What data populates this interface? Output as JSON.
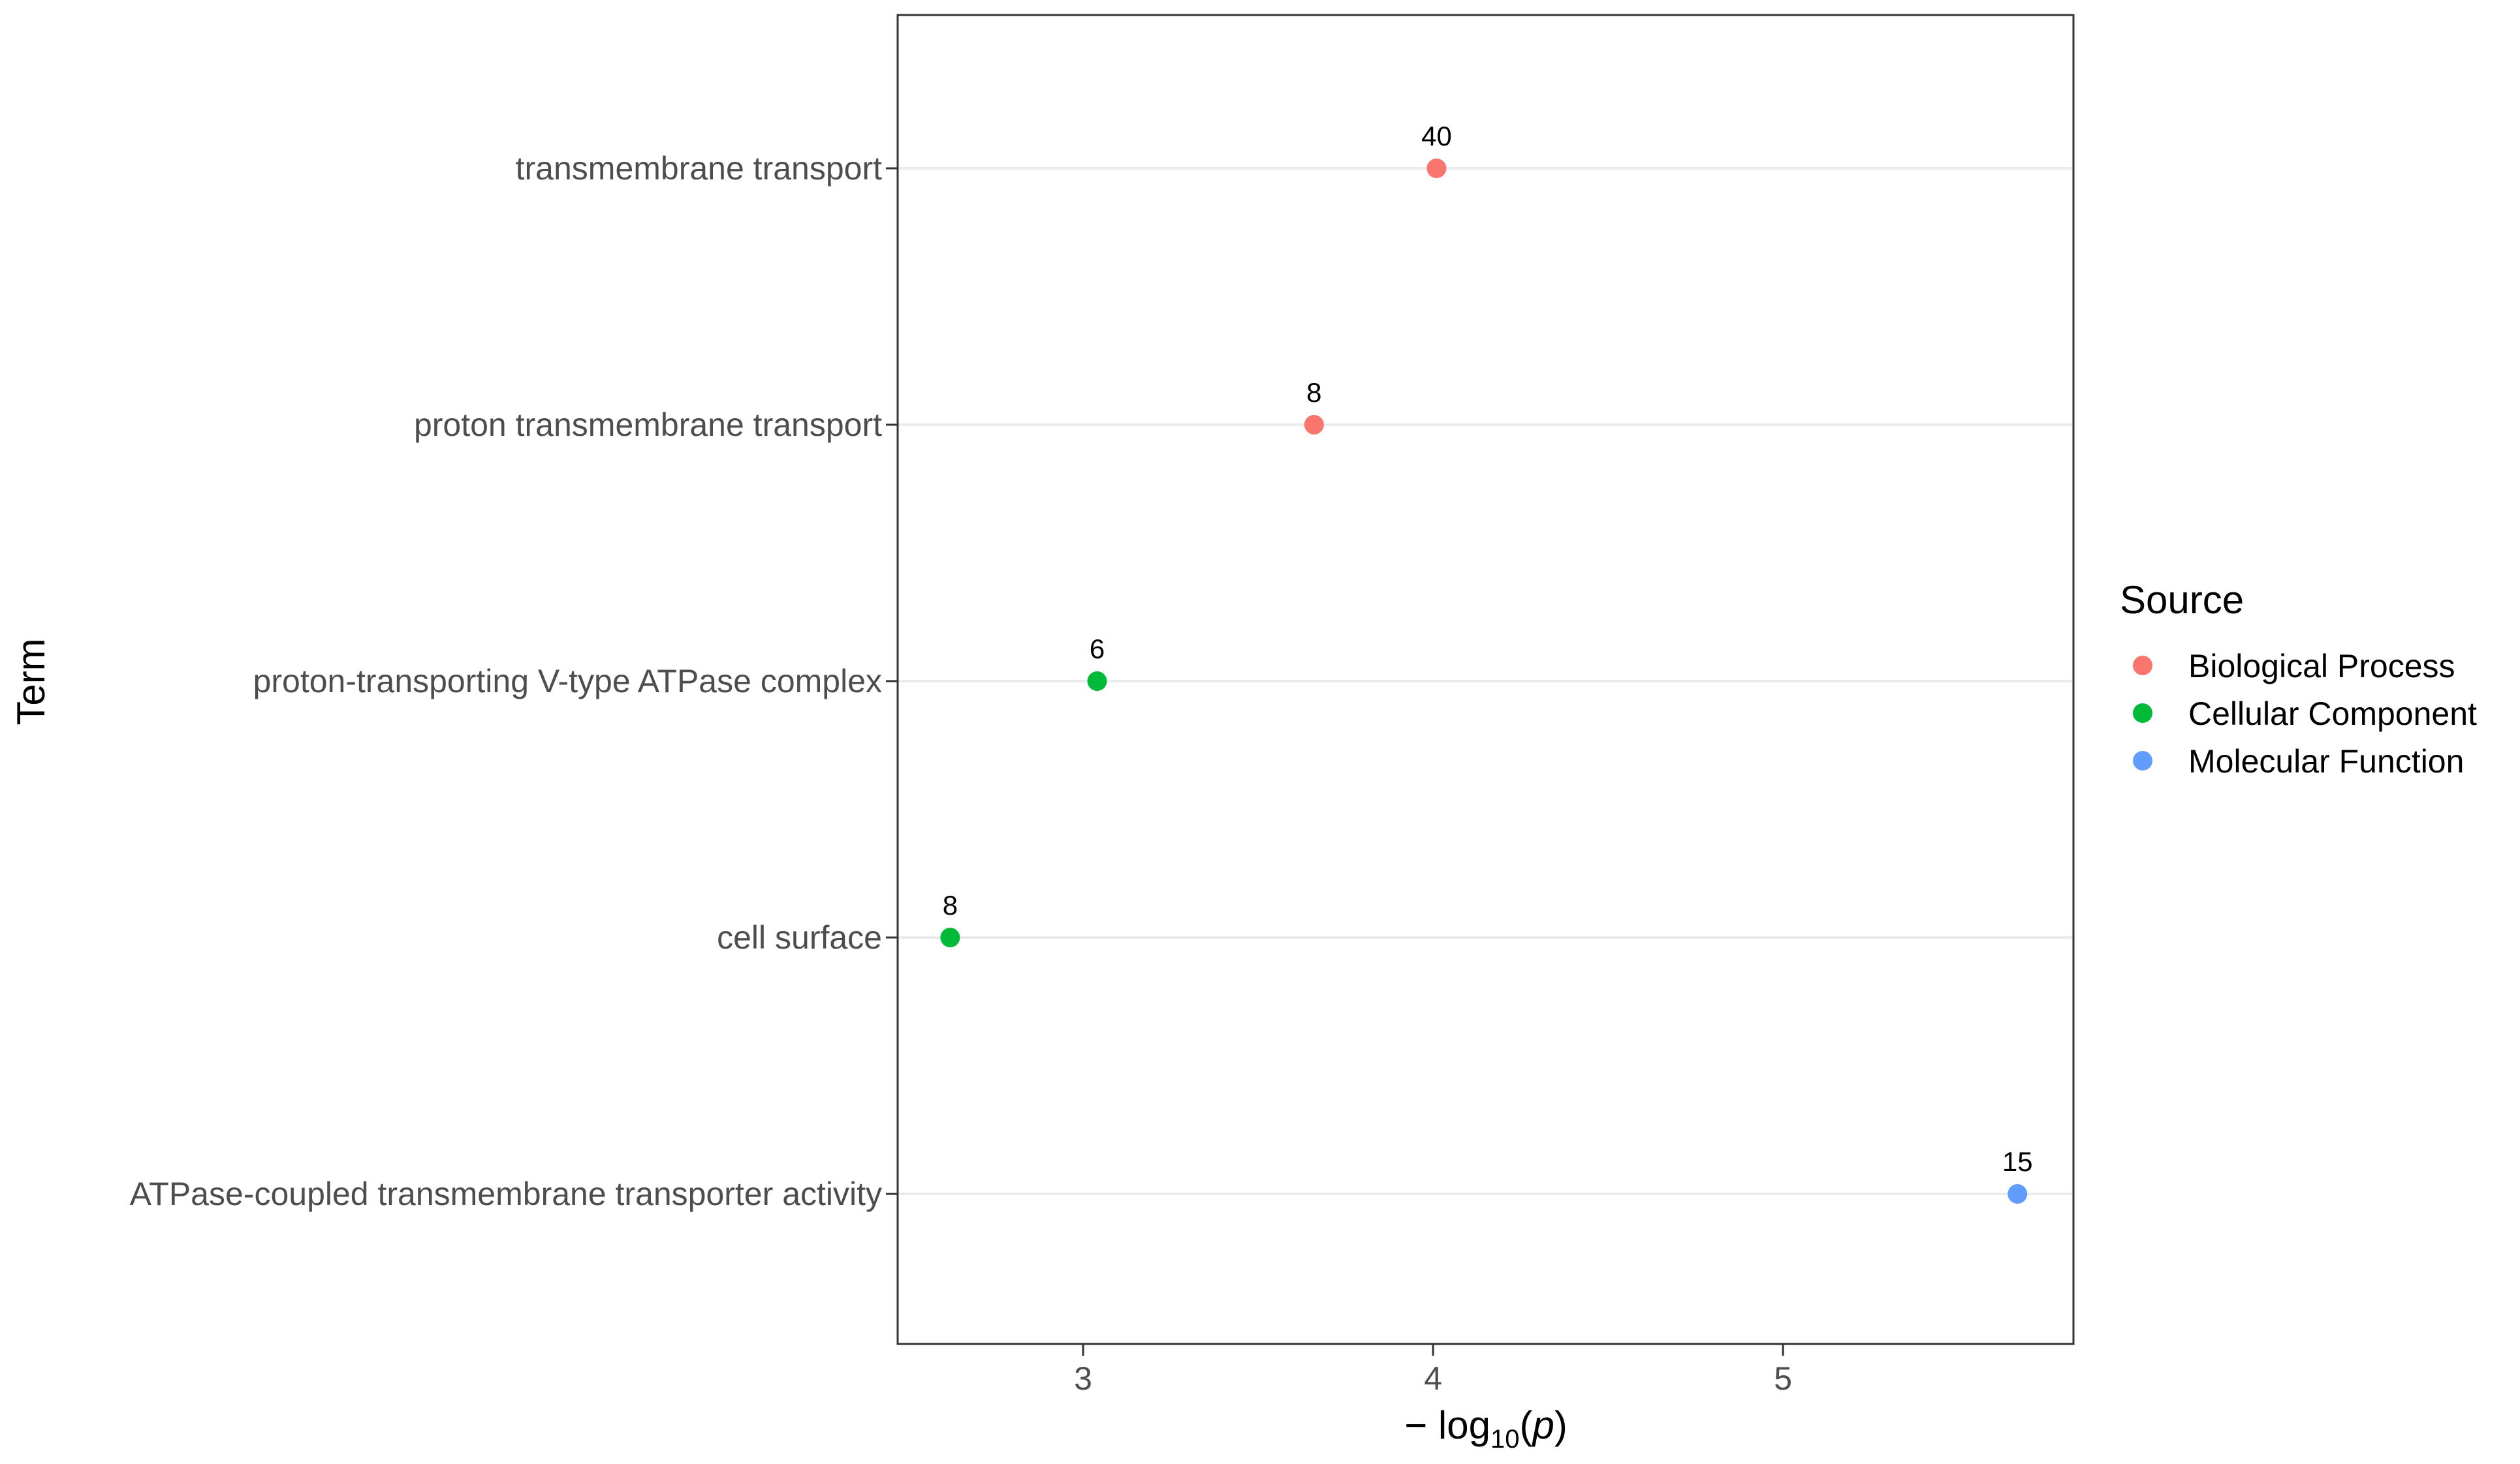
{
  "chart_data": {
    "type": "scatter",
    "xlabel": "−log10(p)",
    "xlabel_parts": {
      "prefix": "− log",
      "subscript": "10",
      "open": "(",
      "var": "p",
      "close": ")"
    },
    "ylabel": "Term",
    "xlim": [
      2.47,
      5.83
    ],
    "x_ticks": [
      3,
      4,
      5
    ],
    "grid": {
      "x_major": false,
      "y_major": true
    },
    "categories": [
      "transmembrane transport",
      "proton transmembrane transport",
      "proton-transporting V-type ATPase complex",
      "cell surface",
      "ATPase-coupled transmembrane transporter activity"
    ],
    "points": [
      {
        "term": "transmembrane transport",
        "x": 4.01,
        "label": "40",
        "source": "Biological Process"
      },
      {
        "term": "proton transmembrane transport",
        "x": 3.66,
        "label": "8",
        "source": "Biological Process"
      },
      {
        "term": "proton-transporting V-type ATPase complex",
        "x": 3.04,
        "label": "6",
        "source": "Cellular Component"
      },
      {
        "term": "cell surface",
        "x": 2.62,
        "label": "8",
        "source": "Cellular Component"
      },
      {
        "term": "ATPase-coupled transmembrane transporter activity",
        "x": 5.67,
        "label": "15",
        "source": "Molecular Function"
      }
    ],
    "legend": {
      "title": "Source",
      "position": "right",
      "entries": [
        {
          "name": "Biological Process",
          "color": "#F8766D"
        },
        {
          "name": "Cellular Component",
          "color": "#00BA38"
        },
        {
          "name": "Molecular Function",
          "color": "#619CFF"
        }
      ]
    }
  }
}
